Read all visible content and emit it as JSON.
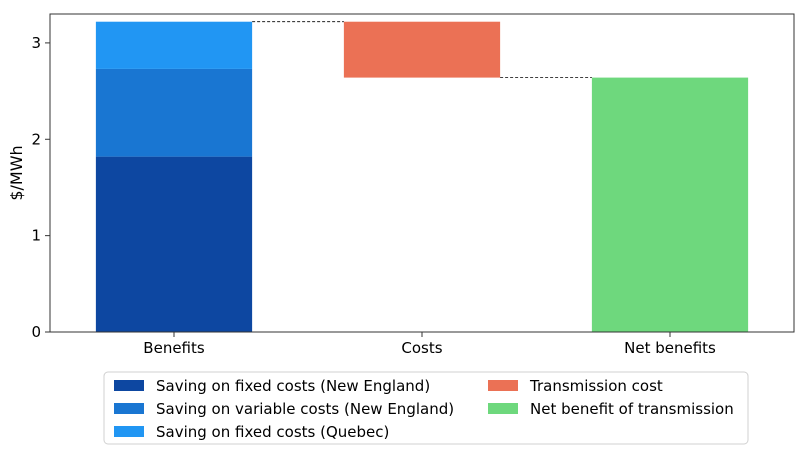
{
  "chart_data": {
    "type": "bar",
    "subtype": "waterfall",
    "title": "",
    "xlabel": "",
    "ylabel": "$/MWh",
    "categories": [
      "Benefits",
      "Costs",
      "Net benefits"
    ],
    "ylim": [
      0,
      3.3
    ],
    "yticks": [
      0,
      1,
      2,
      3
    ],
    "grid": false,
    "legend_position": "bottom",
    "series": [
      {
        "name": "Saving on fixed costs (New England)",
        "color": "#0d47a1",
        "category": "Benefits",
        "base": 0,
        "value": 1.82
      },
      {
        "name": "Saving on variable costs (New England)",
        "color": "#1976d2",
        "category": "Benefits",
        "base": 1.82,
        "value": 0.91
      },
      {
        "name": "Saving on fixed costs (Quebec)",
        "color": "#2196f3",
        "category": "Benefits",
        "base": 2.73,
        "value": 0.49
      },
      {
        "name": "Transmission cost",
        "color": "#eb7155",
        "category": "Costs",
        "base": 2.64,
        "value": 0.58
      },
      {
        "name": "Net benefit of transmission",
        "color": "#6ed87d",
        "category": "Net benefits",
        "base": 0,
        "value": 2.64
      }
    ],
    "connectors": [
      {
        "from": "Benefits",
        "to": "Costs",
        "y": 3.22
      },
      {
        "from": "Costs",
        "to": "Net benefits",
        "y": 2.64
      }
    ],
    "legend_order": [
      0,
      1,
      2,
      3,
      4
    ]
  }
}
